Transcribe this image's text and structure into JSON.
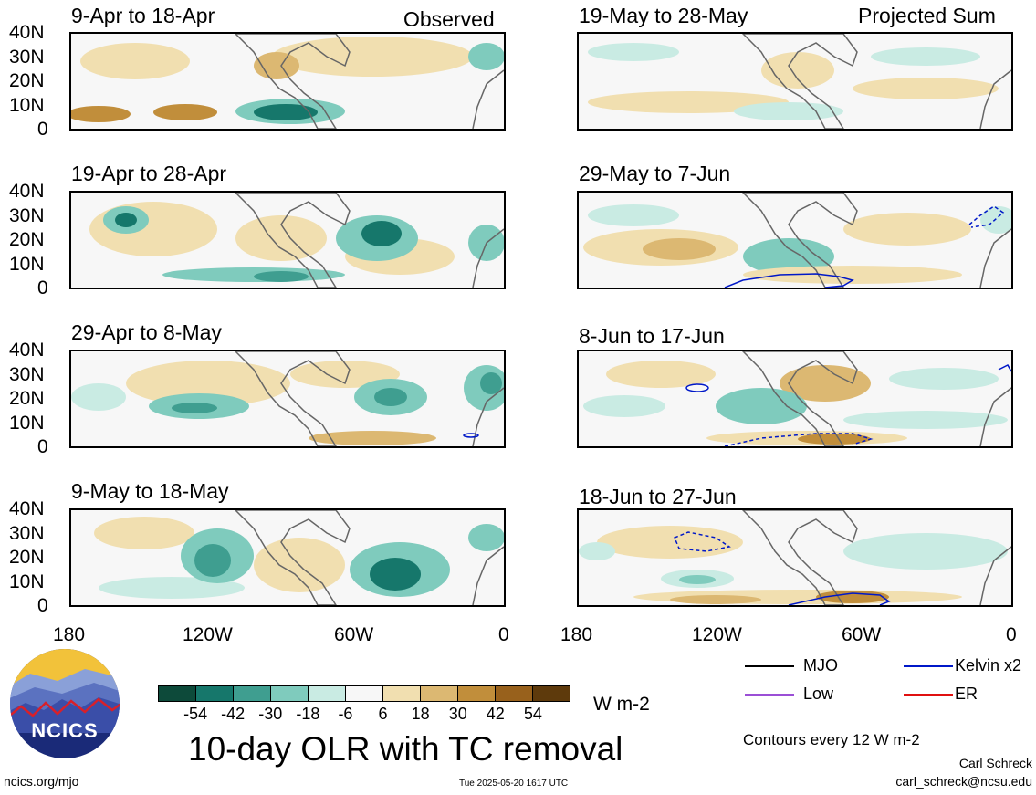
{
  "column_labels": {
    "left": "Observed",
    "right": "Projected Sum"
  },
  "panels_left": [
    {
      "period": "9-Apr to 18-Apr"
    },
    {
      "period": "19-Apr to 28-Apr"
    },
    {
      "period": "29-Apr to 8-May"
    },
    {
      "period": "9-May to 18-May"
    }
  ],
  "panels_right": [
    {
      "period": "19-May to 28-May"
    },
    {
      "period": "29-May to 7-Jun"
    },
    {
      "period": "8-Jun to 17-Jun"
    },
    {
      "period": "18-Jun to 27-Jun"
    }
  ],
  "lat_ticks": [
    "40N",
    "30N",
    "20N",
    "10N",
    "0"
  ],
  "lon_ticks": [
    "180",
    "120W",
    "60W",
    "0"
  ],
  "colorbar": {
    "labels": [
      "-54",
      "-42",
      "-30",
      "-18",
      "-6",
      "6",
      "18",
      "30",
      "42",
      "54"
    ],
    "colors": [
      "#0d4a3a",
      "#16776b",
      "#3f9e90",
      "#7fcbbd",
      "#c9ebe3",
      "#f7f7f7",
      "#f1dfb0",
      "#dcb872",
      "#c18e3b",
      "#98611c",
      "#5e3a0c"
    ],
    "unit": "W m-2"
  },
  "legend": {
    "items": [
      {
        "label": "MJO",
        "color": "#000000"
      },
      {
        "label": "Kelvin x2",
        "color": "#0018c8"
      },
      {
        "label": "Low",
        "color": "#9b4fd6"
      },
      {
        "label": "ER",
        "color": "#e01010"
      }
    ],
    "contour_note": "Contours every 12 W m-2"
  },
  "logo": {
    "text": "NCICS"
  },
  "title": "10-day OLR with TC removal",
  "footer": {
    "url": "ncics.org/mjo",
    "timestamp": "Tue 2025-05-20 1617 UTC",
    "author": "Carl Schreck",
    "email": "carl_schreck@ncsu.edu"
  }
}
